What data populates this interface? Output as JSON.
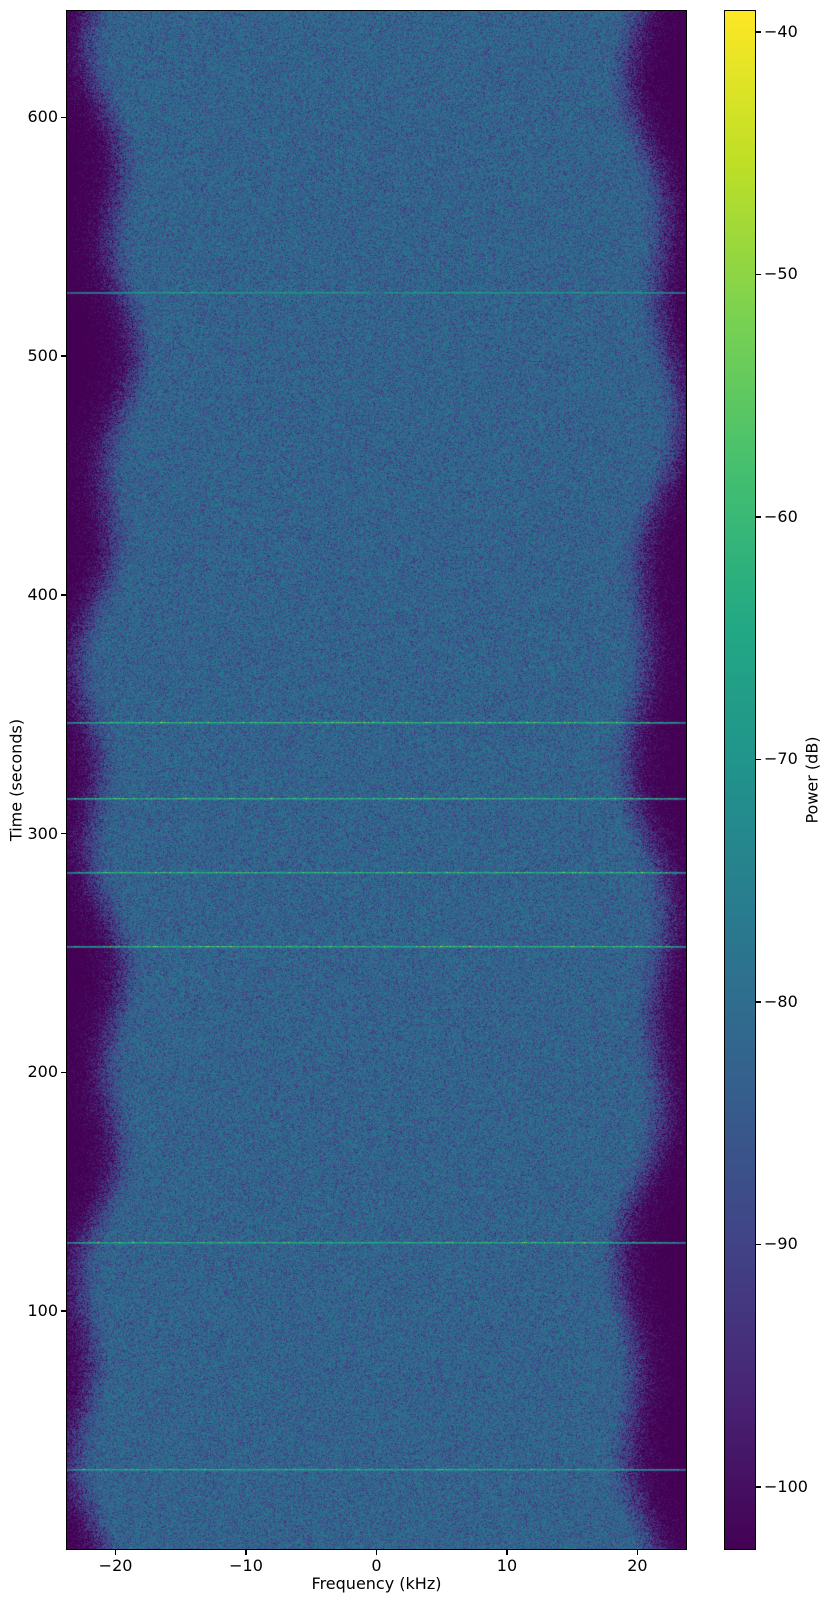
{
  "chart_data": {
    "type": "heatmap",
    "subtype": "spectrogram",
    "title": "",
    "xlabel": "Frequency (kHz)",
    "ylabel": "Time (seconds)",
    "xlim": [
      -23.8,
      23.8
    ],
    "ylim": [
      0,
      645
    ],
    "xticks": [
      -20,
      -10,
      0,
      10,
      20
    ],
    "yticks": [
      100,
      200,
      300,
      400,
      500,
      600
    ],
    "grid": false,
    "colorbar": {
      "label": "Power (dB)",
      "ticks": [
        -40,
        -50,
        -60,
        -70,
        -80,
        -90,
        -100
      ],
      "vmin": -102.6,
      "vmax": -39.1,
      "colormap": "viridis",
      "colormap_stops": [
        "#440154",
        "#482475",
        "#414487",
        "#355f8d",
        "#2a788e",
        "#21918c",
        "#22a884",
        "#44bf70",
        "#7ad151",
        "#bddf26",
        "#fde725"
      ],
      "position": "right"
    },
    "signal": {
      "description": "Broadband noise floor with band-limited passband and sparse broadband burst events",
      "noise_floor_db": -80.3,
      "passband_khz": 19,
      "rolloff_width_khz": 3.8,
      "stopband_db": -102,
      "events": [
        {
          "time_s": 527,
          "peak_db": -62,
          "strength": 0.55,
          "center_gap": true
        },
        {
          "time_s": 347,
          "peak_db": -45,
          "strength": 1.0,
          "center_gap": false
        },
        {
          "time_s": 315,
          "peak_db": -45,
          "strength": 1.0,
          "center_gap": false
        },
        {
          "time_s": 284,
          "peak_db": -46,
          "strength": 0.95,
          "center_gap": false
        },
        {
          "time_s": 253,
          "peak_db": -45,
          "strength": 1.0,
          "center_gap": false
        },
        {
          "time_s": 129,
          "peak_db": -46,
          "strength": 0.9,
          "center_gap": false
        },
        {
          "time_s": 34,
          "peak_db": -55,
          "strength": 0.8,
          "center_gap": false
        }
      ]
    }
  }
}
